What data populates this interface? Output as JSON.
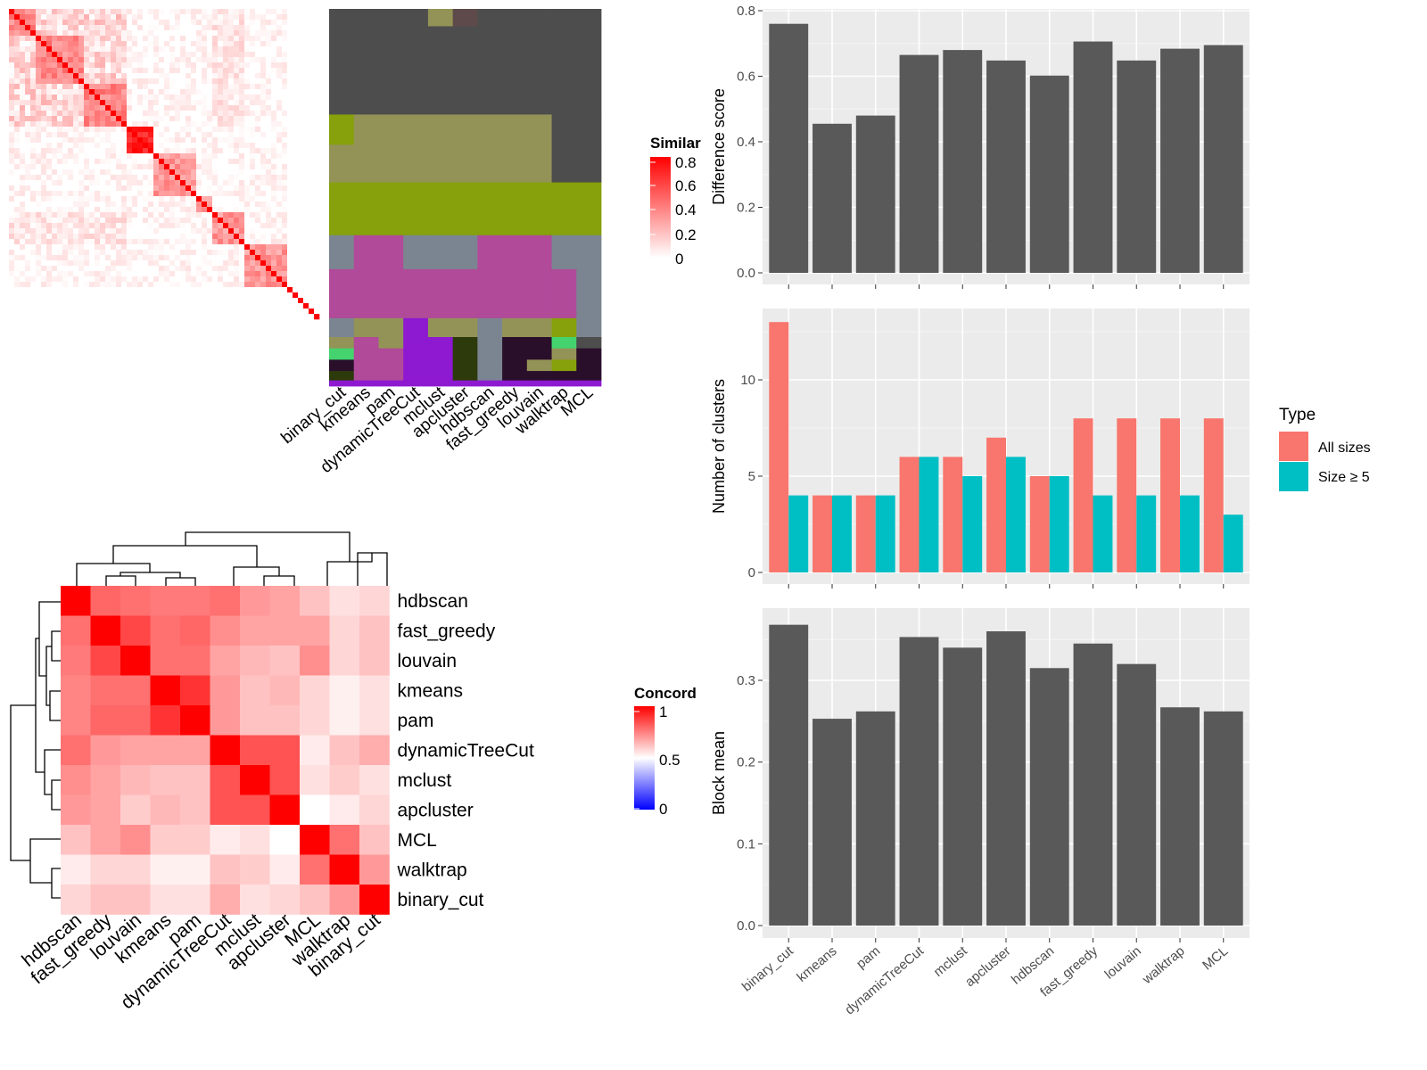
{
  "simheat": {
    "legend_title": "Similar",
    "legend_ticks": [
      "0.8",
      "0.6",
      "0.4",
      "0.2",
      "0"
    ],
    "colors": {
      "low": "#ffffff",
      "high": "#ff0000"
    },
    "method_labels": [
      "binary_cut",
      "kmeans",
      "pam",
      "dynamicTreeCut",
      "mclust",
      "apcluster",
      "hdbscan",
      "fast_greedy",
      "louvain",
      "walktrap",
      "MCL"
    ]
  },
  "concord": {
    "legend_title": "Concord",
    "legend_ticks": [
      "1",
      "0.5",
      "0"
    ],
    "colors": {
      "low": "#0000ff",
      "mid": "#ffffff",
      "high": "#ff0000"
    },
    "row_labels": [
      "hdbscan",
      "fast_greedy",
      "louvain",
      "kmeans",
      "pam",
      "dynamicTreeCut",
      "mclust",
      "apcluster",
      "MCL",
      "walktrap",
      "binary_cut"
    ],
    "col_labels": [
      "hdbscan",
      "fast_greedy",
      "louvain",
      "kmeans",
      "pam",
      "dynamicTreeCut",
      "mclust",
      "apcluster",
      "MCL",
      "walktrap",
      "binary_cut"
    ],
    "matrix": [
      [
        1.0,
        0.8,
        0.78,
        0.76,
        0.76,
        0.78,
        0.7,
        0.68,
        0.62,
        0.56,
        0.58
      ],
      [
        0.78,
        1.0,
        0.86,
        0.78,
        0.8,
        0.72,
        0.68,
        0.68,
        0.68,
        0.58,
        0.62
      ],
      [
        0.76,
        0.86,
        1.0,
        0.78,
        0.78,
        0.68,
        0.64,
        0.62,
        0.72,
        0.58,
        0.62
      ],
      [
        0.74,
        0.78,
        0.78,
        1.0,
        0.9,
        0.7,
        0.62,
        0.64,
        0.58,
        0.53,
        0.56
      ],
      [
        0.74,
        0.8,
        0.8,
        0.9,
        1.0,
        0.7,
        0.62,
        0.62,
        0.58,
        0.53,
        0.56
      ],
      [
        0.78,
        0.7,
        0.68,
        0.68,
        0.68,
        1.0,
        0.84,
        0.84,
        0.54,
        0.62,
        0.66
      ],
      [
        0.72,
        0.68,
        0.64,
        0.62,
        0.62,
        0.84,
        1.0,
        0.84,
        0.56,
        0.6,
        0.56
      ],
      [
        0.7,
        0.68,
        0.6,
        0.64,
        0.62,
        0.84,
        0.84,
        1.0,
        0.5,
        0.54,
        0.58
      ],
      [
        0.62,
        0.68,
        0.72,
        0.6,
        0.6,
        0.54,
        0.56,
        0.5,
        1.0,
        0.78,
        0.62
      ],
      [
        0.54,
        0.58,
        0.58,
        0.53,
        0.53,
        0.62,
        0.6,
        0.54,
        0.78,
        1.0,
        0.7
      ],
      [
        0.58,
        0.62,
        0.62,
        0.56,
        0.56,
        0.66,
        0.56,
        0.58,
        0.62,
        0.7,
        1.0
      ]
    ]
  },
  "chart_data": [
    {
      "type": "bar",
      "categories": [
        "binary_cut",
        "kmeans",
        "pam",
        "dynamicTreeCut",
        "mclust",
        "apcluster",
        "hdbscan",
        "fast_greedy",
        "louvain",
        "walktrap",
        "MCL"
      ],
      "values": [
        0.76,
        0.455,
        0.48,
        0.665,
        0.68,
        0.648,
        0.602,
        0.706,
        0.648,
        0.684,
        0.695
      ],
      "ylabel": "Difference score",
      "ylim": [
        0,
        0.8
      ],
      "yticks": [
        "0.0",
        "0.2",
        "0.4",
        "0.6",
        "0.8"
      ],
      "bar_color": "#595959"
    },
    {
      "type": "bar",
      "categories": [
        "binary_cut",
        "kmeans",
        "pam",
        "dynamicTreeCut",
        "mclust",
        "apcluster",
        "hdbscan",
        "fast_greedy",
        "louvain",
        "walktrap",
        "MCL"
      ],
      "series": [
        {
          "name": "All sizes",
          "values": [
            13,
            4,
            4,
            6,
            6,
            7,
            5,
            8,
            8,
            8,
            8
          ],
          "color": "#f8766d"
        },
        {
          "name": "Size ≥ 5",
          "values": [
            4,
            4,
            4,
            6,
            5,
            6,
            5,
            4,
            4,
            4,
            3
          ],
          "color": "#00bfc4"
        }
      ],
      "ylabel": "Number of clusters",
      "ylim": [
        0,
        14
      ],
      "yticks": [
        "0",
        "5",
        "10"
      ],
      "legend_title": "Type",
      "legend_position": "right"
    },
    {
      "type": "bar",
      "categories": [
        "binary_cut",
        "kmeans",
        "pam",
        "dynamicTreeCut",
        "mclust",
        "apcluster",
        "hdbscan",
        "fast_greedy",
        "louvain",
        "walktrap",
        "MCL"
      ],
      "values": [
        0.368,
        0.253,
        0.262,
        0.353,
        0.34,
        0.36,
        0.315,
        0.345,
        0.32,
        0.267,
        0.262
      ],
      "ylabel": "Block mean",
      "ylim": [
        0,
        0.38
      ],
      "yticks": [
        "0.0",
        "0.1",
        "0.2",
        "0.3"
      ],
      "bar_color": "#595959"
    }
  ]
}
